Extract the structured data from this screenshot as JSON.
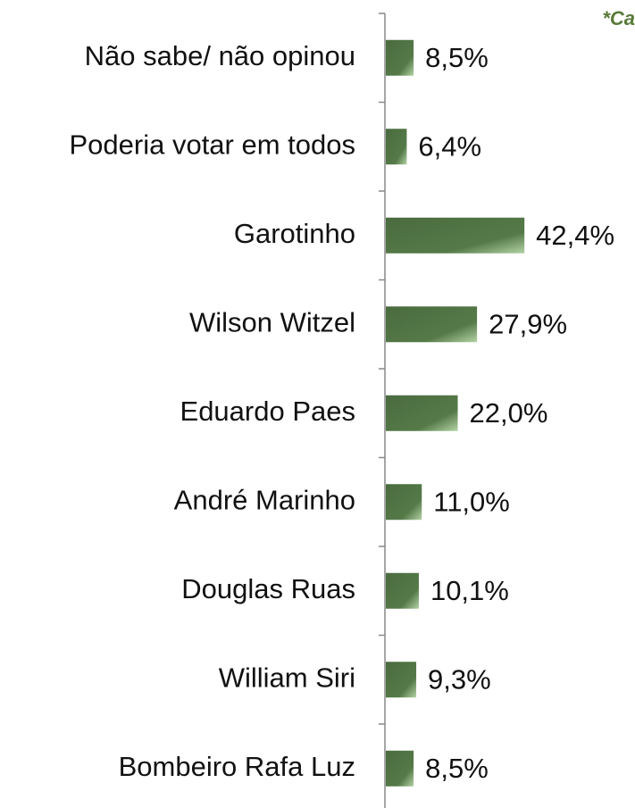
{
  "chart_data": {
    "type": "barh",
    "annotation": "*Ca",
    "categories": [
      "Não sabe/ não opinou",
      "Poderia votar em todos",
      "Garotinho",
      "Wilson Witzel",
      "Eduardo Paes",
      "André Marinho",
      "Douglas Ruas",
      "William Siri",
      "Bombeiro Rafa Luz"
    ],
    "values": [
      8.5,
      6.4,
      42.4,
      27.9,
      22.0,
      11.0,
      10.1,
      9.3,
      8.5
    ],
    "value_labels": [
      "8,5%",
      "6,4%",
      "42,4%",
      "27,9%",
      "22,0%",
      "11,0%",
      "10,1%",
      "9,3%",
      "8,5%"
    ],
    "color": "#4a6b3f"
  }
}
